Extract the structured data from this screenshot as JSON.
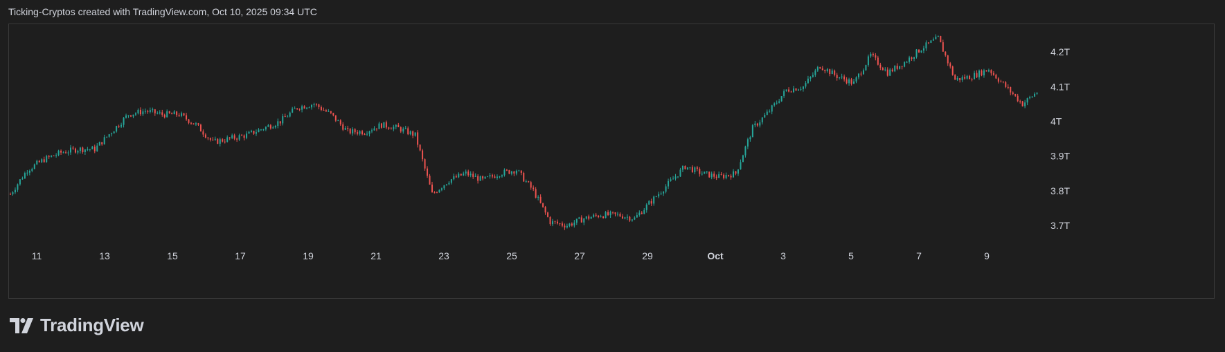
{
  "attribution": "Ticking-Cryptos created with TradingView.com, Oct 10, 2025 09:34 UTC",
  "brand": {
    "name": "TradingView",
    "icon": "tradingview-logo-icon"
  },
  "colors": {
    "background": "#1e1e1e",
    "up": "#26a69a",
    "down": "#ef5350",
    "text": "#d1d4dc",
    "border": "#3a3a3a"
  },
  "chart_data": {
    "type": "candlestick",
    "title": "",
    "xlabel": "",
    "ylabel": "",
    "x_ticks": [
      "11",
      "13",
      "15",
      "17",
      "19",
      "21",
      "23",
      "25",
      "27",
      "29",
      "Oct",
      "3",
      "5",
      "7",
      "9"
    ],
    "y_ticks": [
      "4.2T",
      "4.1T",
      "4T",
      "3.9T",
      "3.8T",
      "3.7T"
    ],
    "y_tick_values": [
      4.2,
      4.1,
      4.0,
      3.9,
      3.8,
      3.7
    ],
    "y_unit": "T",
    "ylim": [
      3.65,
      4.26
    ],
    "grid": false,
    "legend": "none",
    "close_series": {
      "x": [
        "Sep 10 00:00",
        "Sep 10 12:00",
        "Sep 11 00:00",
        "Sep 11 12:00",
        "Sep 12 00:00",
        "Sep 12 12:00",
        "Sep 13 00:00",
        "Sep 13 12:00",
        "Sep 14 00:00",
        "Sep 14 12:00",
        "Sep 15 00:00",
        "Sep 15 12:00",
        "Sep 16 00:00",
        "Sep 16 12:00",
        "Sep 17 00:00",
        "Sep 17 12:00",
        "Sep 18 00:00",
        "Sep 18 12:00",
        "Sep 19 00:00",
        "Sep 19 12:00",
        "Sep 20 00:00",
        "Sep 20 12:00",
        "Sep 21 00:00",
        "Sep 21 12:00",
        "Sep 22 00:00",
        "Sep 22 12:00",
        "Sep 23 00:00",
        "Sep 23 12:00",
        "Sep 24 00:00",
        "Sep 24 12:00",
        "Sep 25 00:00",
        "Sep 25 12:00",
        "Sep 26 00:00",
        "Sep 26 12:00",
        "Sep 27 00:00",
        "Sep 27 12:00",
        "Sep 28 00:00",
        "Sep 28 12:00",
        "Sep 29 00:00",
        "Sep 29 12:00",
        "Sep 30 00:00",
        "Sep 30 12:00",
        "Oct 1 00:00",
        "Oct 1 12:00",
        "Oct 2 00:00",
        "Oct 2 12:00",
        "Oct 3 00:00",
        "Oct 3 12:00",
        "Oct 4 00:00",
        "Oct 4 12:00",
        "Oct 5 00:00",
        "Oct 5 12:00",
        "Oct 6 00:00",
        "Oct 6 12:00",
        "Oct 7 00:00",
        "Oct 7 12:00",
        "Oct 8 00:00",
        "Oct 8 12:00",
        "Oct 9 00:00",
        "Oct 9 12:00",
        "Oct 10 00:00",
        "Oct 10 09:00"
      ],
      "values": [
        3.79,
        3.86,
        3.89,
        3.91,
        3.92,
        3.92,
        3.97,
        4.02,
        4.03,
        4.02,
        4.02,
        3.99,
        3.94,
        3.95,
        3.96,
        3.98,
        4.0,
        4.04,
        4.05,
        4.02,
        3.97,
        3.97,
        3.99,
        3.98,
        3.96,
        3.79,
        3.83,
        3.85,
        3.83,
        3.85,
        3.86,
        3.8,
        3.71,
        3.7,
        3.72,
        3.73,
        3.73,
        3.72,
        3.77,
        3.82,
        3.87,
        3.85,
        3.84,
        3.85,
        3.98,
        4.03,
        4.09,
        4.1,
        4.16,
        4.13,
        4.11,
        4.19,
        4.14,
        4.17,
        4.21,
        4.24,
        4.12,
        4.13,
        4.15,
        4.1,
        4.05,
        4.09
      ]
    }
  }
}
